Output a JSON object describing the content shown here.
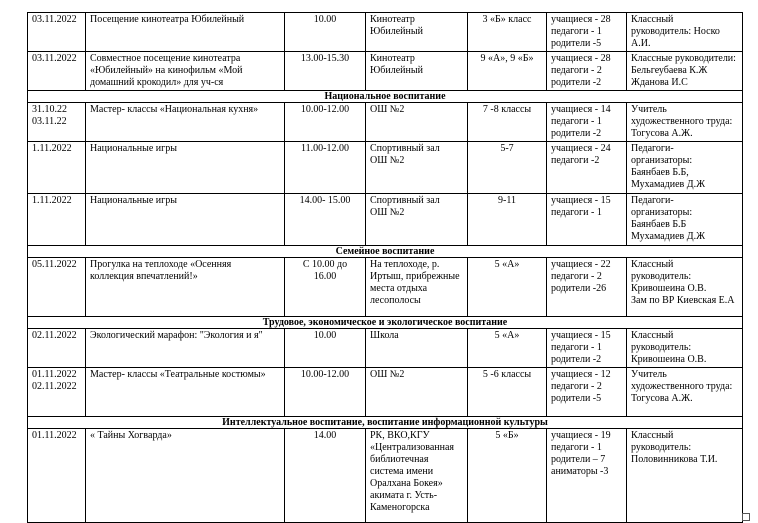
{
  "rows": [
    {
      "type": "row",
      "cells": [
        "03.11.2022",
        " Посещение  кинотеатра  Юбилейный",
        "10.00",
        "Кинотеатр\nЮбилейный",
        "3 «Б» класс",
        "учащиеся  - 28\nпедагоги  - 1\nродители  -5",
        "Классный\nруководитель:  Носко\nА.И."
      ]
    },
    {
      "type": "row",
      "cells": [
        "03.11.2022",
        "Совместное  посещение   кинотеатра\n«Юбилейный»  на кинофильм «Мой\nдомашний  крокодил»    для уч-ся",
        "13.00-15.30",
        "Кинотеатр\nЮбилейный",
        "9 «А», 9 «Б»",
        "учащиеся  - 28\nпедагоги  - 2\nродители  -2",
        "Классные  руководители:\nБельгеубаева К.Ж\nЖданова И.С"
      ]
    },
    {
      "type": "section",
      "title": "Национальное воспитание"
    },
    {
      "type": "row",
      "cells": [
        "31.10.22\n03.11.22",
        "Мастер-  классы   «Национальная  кухня»",
        "10.00-12.00",
        "ОШ №2",
        "7 -8 классы",
        "учащиеся  - 14\nпедагоги  - 1\nродители  -2",
        "Учитель\nхудожественного   труда:\nТогусова А.Ж."
      ]
    },
    {
      "type": "row",
      "cells": [
        " 1.11.2022",
        "Национальные  игры",
        "11.00-12.00",
        "Спортивный  зал\nОШ №2",
        "5-7",
        "учащиеся  - 24\nпедагоги  -2",
        "Педагоги-\nорганизаторы:\nБаянбаев Б.Б,\nМухамадиев Д.Ж"
      ]
    },
    {
      "type": "row",
      "cells": [
        " 1.11.2022",
        "Национальные  игры",
        "14.00- 15.00",
        "Спортивный  зал\nОШ №2",
        "9-11",
        "учащиеся  - 15\nпедагоги  - 1",
        "Педагоги-\nорганизаторы:\nБаянбаев Б.Б\nМухамадиев Д.Ж"
      ]
    },
    {
      "type": "section",
      "title": "Семейное воспитание"
    },
    {
      "type": "row",
      "cells": [
        "05.11.2022",
        "Прогулка на теплоходе «Осенняя\nколлекция  впечатлений!»",
        "С 10.00 до\n16.00",
        "На теплоходе,  р.\nИртыш, прибрежные\nместа  отдыха\nлесополосы",
        "5 «А»",
        "учащиеся  - 22\nпедагоги  - 2\nродители  -26",
        "Классный\nруководитель:\nКривошеина  О.В.\nЗам  по ВР Киевская  Е.А"
      ]
    },
    {
      "type": "section",
      "title": "Трудовое, экономическое и экологическое воспитание"
    },
    {
      "type": "row",
      "cells": [
        "02.11.2022",
        "Экологический  марафон:  \"Экология и я\"",
        "10.00",
        "Школа",
        "5 «А»",
        "учащиеся  - 15\nпедагоги  - 1\nродители  -2",
        "Классный\nруководитель:\nКривошеина  О.В."
      ]
    },
    {
      "type": "row",
      "cells": [
        "01.11.2022\n02.11.2022",
        "Мастер-  классы   «Театральные  костюмы»",
        "10.00-12.00",
        "ОШ №2",
        "5 -6 классы",
        "учащиеся  - 12\nпедагоги  - 2\nродители  -5",
        "Учитель\nхудожественного   труда:\nТогусова А.Ж."
      ]
    },
    {
      "type": "section",
      "title": "Интеллектуальное воспитание, воспитание информационной культуры"
    },
    {
      "type": "row",
      "cells": [
        "01.11.2022",
        "« Тайны  Хогварда»",
        "14.00",
        "РК, ВКО,КГУ\n«Централизованная\nбиблиотечная\nсистема  имени\nОралхана  Бокея»\nакимата  г. Усть-\nКаменогорска",
        "5 «Б»",
        "учащиеся  - 19\nпедагоги  -  1\nродители  – 7\nаниматоры  -3",
        "Классный\nруководитель:\nПоловинникова  Т.И."
      ]
    }
  ]
}
